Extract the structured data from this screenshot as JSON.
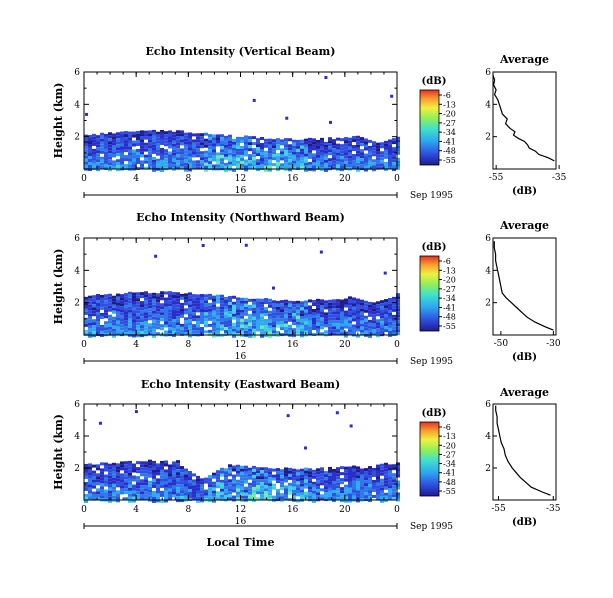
{
  "chart_data": [
    {
      "type": "heatmap",
      "title": "Echo Intensity (Vertical Beam)",
      "ylabel": "Height (km)",
      "xlabel": "",
      "xlim": [
        0,
        24
      ],
      "ylim": [
        0,
        6
      ],
      "x_ticks": [
        "0",
        "4",
        "8",
        "12",
        "16",
        "20",
        "0"
      ],
      "y_ticks": [
        "2",
        "4",
        "6"
      ],
      "date_label": "16",
      "date_suffix": "Sep 1995",
      "cloud": {
        "base_top_km": 2.1,
        "dip_hour": 22.5,
        "dip_top_km": 1.6
      },
      "colorbar": {
        "unit": "(dB)",
        "labels": [
          "-6",
          "-13",
          "-20",
          "-27",
          "-34",
          "-41",
          "-48",
          "-55"
        ]
      },
      "profile": {
        "title": "Average",
        "xlabel": "(dB)",
        "xlim": [
          -56,
          -36
        ],
        "x_ticks": [
          "-55",
          "-35"
        ],
        "y_ticks": [
          "2",
          "4",
          "6"
        ],
        "height_km": [
          0.5,
          0.7,
          0.9,
          1.1,
          1.3,
          1.5,
          1.7,
          1.9,
          2.1,
          2.3,
          2.5,
          2.8,
          3.1,
          3.4,
          3.7,
          4.0,
          4.3,
          4.6,
          4.9,
          5.2,
          5.5,
          5.8
        ],
        "db": [
          -36.5,
          -38.5,
          -41.5,
          -42.5,
          -44.5,
          -45.0,
          -46.0,
          -48.0,
          -49.5,
          -49.0,
          -50.5,
          -52.0,
          -51.5,
          -53.0,
          -53.5,
          -54.0,
          -54.5,
          -55.5,
          -55.0,
          -55.8,
          -55.5,
          -56.0
        ]
      }
    },
    {
      "type": "heatmap",
      "title": "Echo Intensity (Northward Beam)",
      "ylabel": "Height (km)",
      "xlabel": "",
      "xlim": [
        0,
        24
      ],
      "ylim": [
        0,
        6
      ],
      "x_ticks": [
        "0",
        "4",
        "8",
        "12",
        "16",
        "20",
        "0"
      ],
      "y_ticks": [
        "2",
        "4",
        "6"
      ],
      "date_label": "16",
      "date_suffix": "Sep 1995",
      "cloud": {
        "base_top_km": 2.4,
        "dip_hour": 22.0,
        "dip_top_km": 2.0
      },
      "colorbar": {
        "unit": "(dB)",
        "labels": [
          "-6",
          "-13",
          "-20",
          "-27",
          "-34",
          "-41",
          "-48",
          "-55"
        ]
      },
      "profile": {
        "title": "Average",
        "xlabel": "(dB)",
        "xlim": [
          -53,
          -29
        ],
        "x_ticks": [
          "-50",
          "-30"
        ],
        "y_ticks": [
          "2",
          "4",
          "6"
        ],
        "height_km": [
          0.3,
          0.5,
          0.8,
          1.1,
          1.4,
          1.7,
          2.0,
          2.3,
          2.6,
          3.0,
          3.4,
          3.8,
          4.2,
          4.6,
          5.0,
          5.4,
          5.8
        ],
        "db": [
          -30.0,
          -33.0,
          -37.0,
          -40.0,
          -42.0,
          -44.0,
          -46.0,
          -48.0,
          -49.5,
          -50.0,
          -50.5,
          -51.0,
          -51.5,
          -52.0,
          -52.0,
          -52.5,
          -52.5
        ]
      }
    },
    {
      "type": "heatmap",
      "title": "Echo Intensity (Eastward Beam)",
      "ylabel": "Height (km)",
      "xlabel": "Local Time",
      "xlim": [
        0,
        24
      ],
      "ylim": [
        0,
        6
      ],
      "x_ticks": [
        "0",
        "4",
        "8",
        "12",
        "16",
        "20",
        "0"
      ],
      "y_ticks": [
        "2",
        "4",
        "6"
      ],
      "date_label": "16",
      "date_suffix": "Sep 1995",
      "cloud": {
        "base_top_km": 2.2,
        "dip_hour": 9.0,
        "dip_top_km": 1.3
      },
      "colorbar": {
        "unit": "(dB)",
        "labels": [
          "-6",
          "-13",
          "-20",
          "-27",
          "-34",
          "-41",
          "-48",
          "-55"
        ]
      },
      "profile": {
        "title": "Average",
        "xlabel": "(dB)",
        "xlim": [
          -57,
          -34
        ],
        "x_ticks": [
          "-55",
          "-35"
        ],
        "y_ticks": [
          "2",
          "4",
          "6"
        ],
        "height_km": [
          0.3,
          0.5,
          0.8,
          1.1,
          1.4,
          1.7,
          2.0,
          2.4,
          2.8,
          3.2,
          3.6,
          4.0,
          4.4,
          4.8,
          5.2,
          5.6,
          5.9
        ],
        "db": [
          -36.0,
          -39.0,
          -43.0,
          -45.0,
          -47.0,
          -48.5,
          -50.0,
          -51.5,
          -52.5,
          -53.0,
          -54.0,
          -54.5,
          -55.0,
          -55.5,
          -55.5,
          -56.0,
          -56.0
        ]
      }
    }
  ]
}
